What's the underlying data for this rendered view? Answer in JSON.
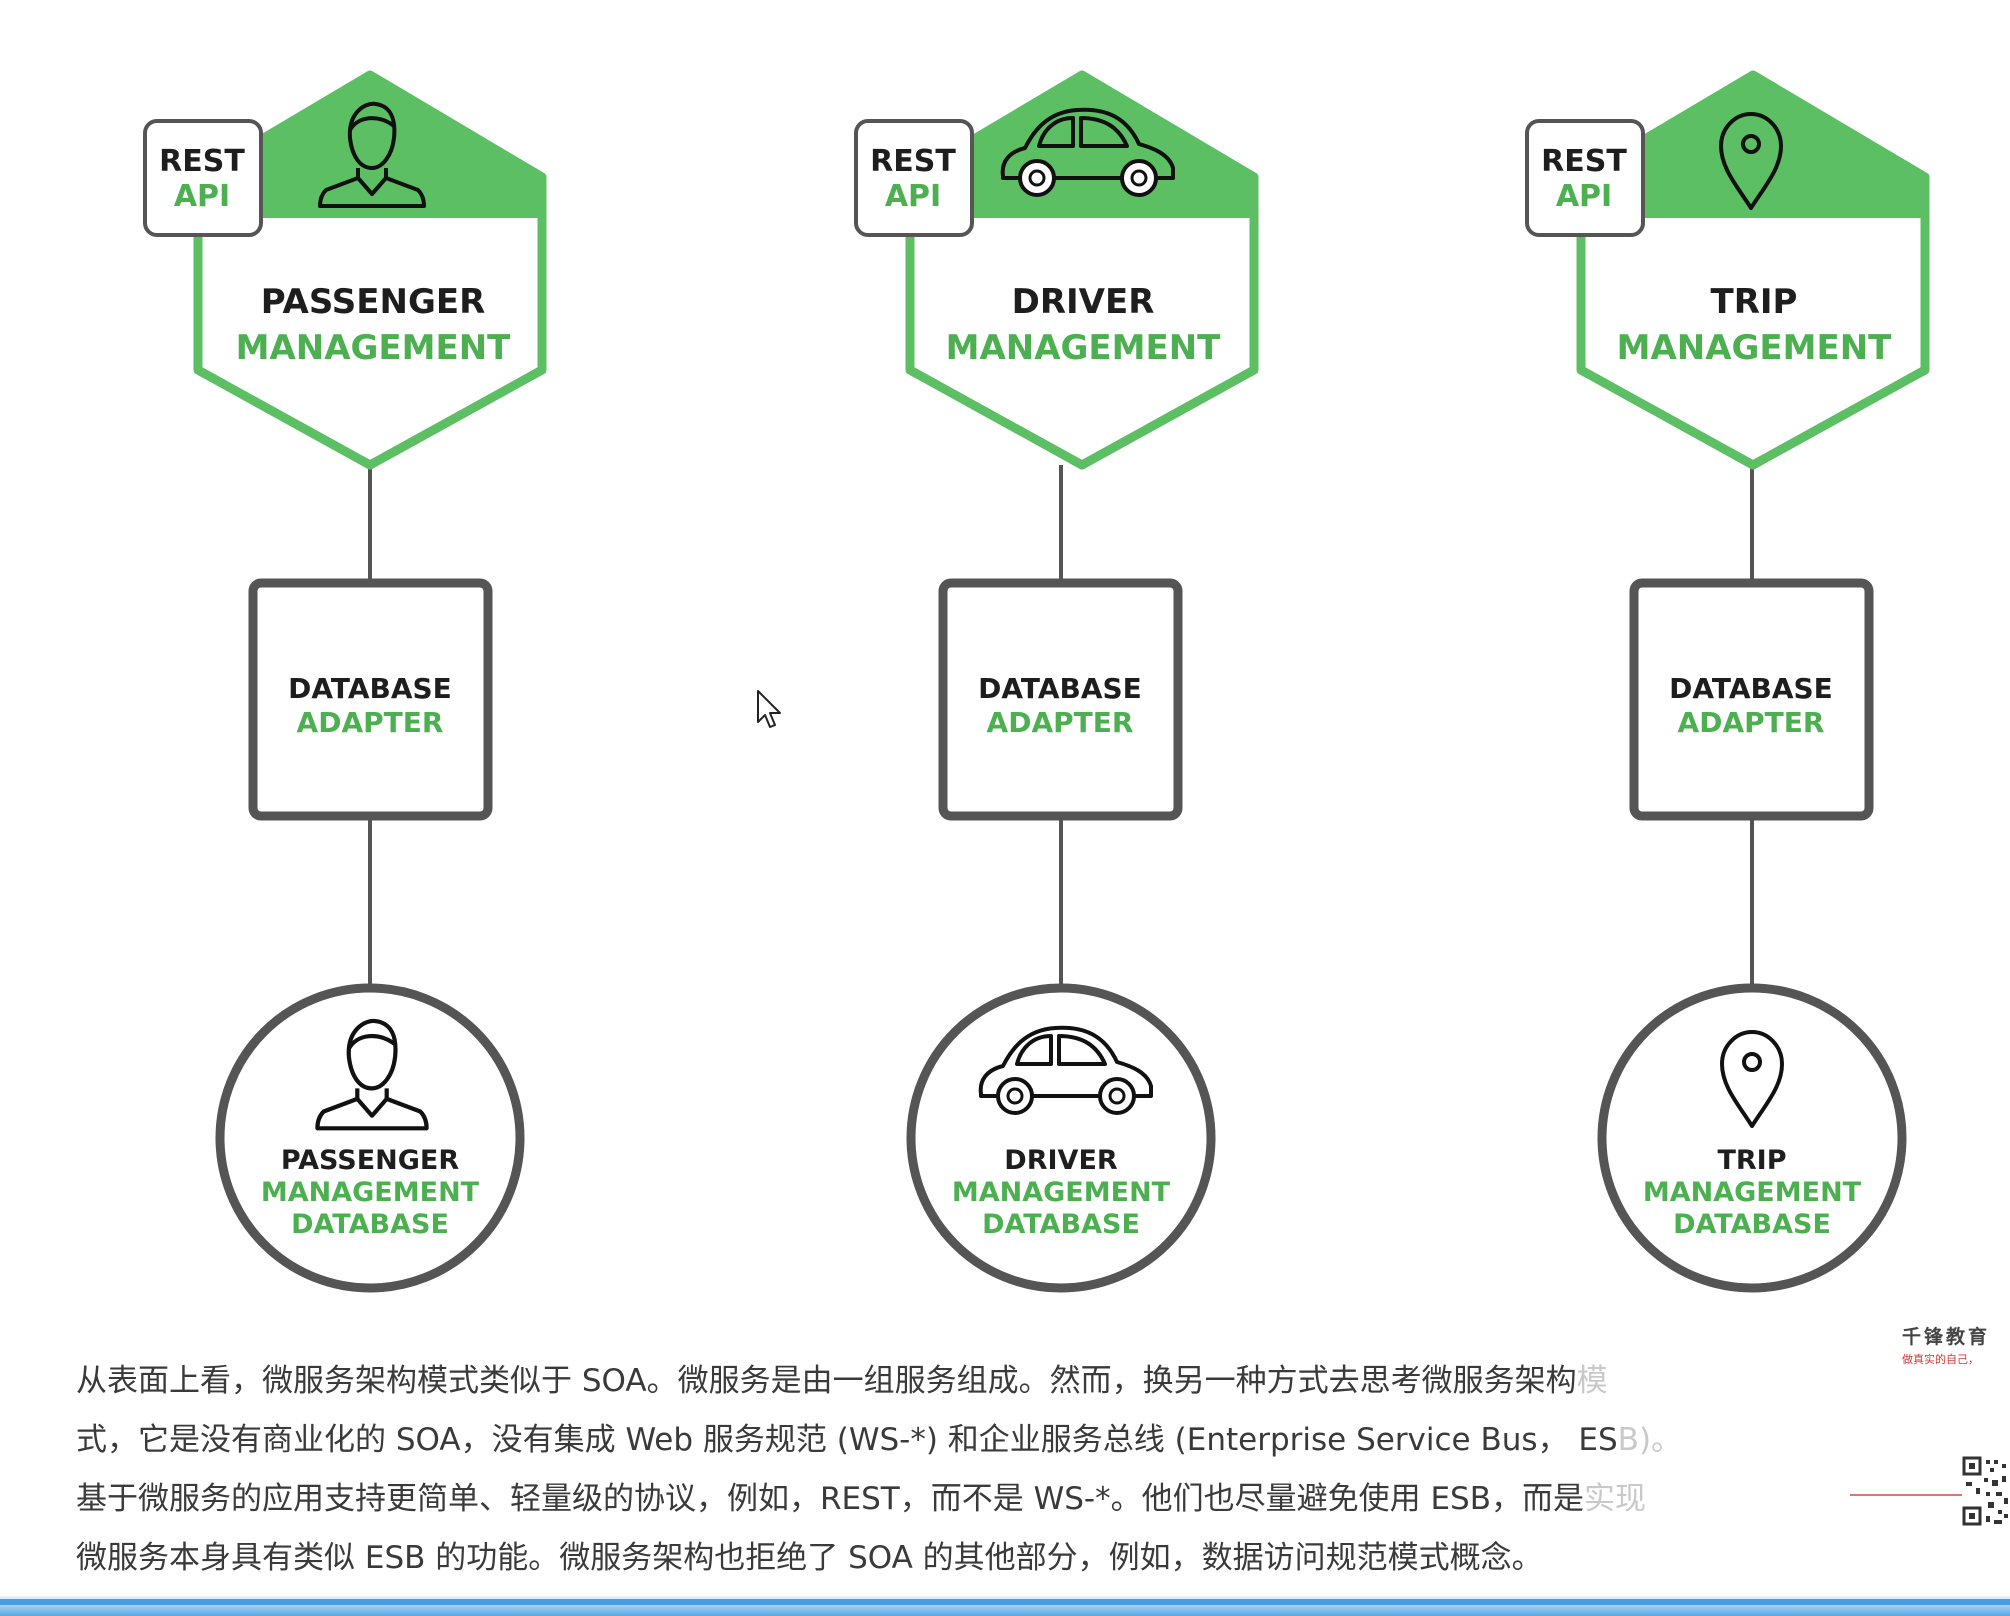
{
  "services": [
    {
      "id": "passenger",
      "icon": "person-icon",
      "api": {
        "line1": "REST",
        "line2": "API"
      },
      "name": {
        "line1": "PASSENGER",
        "line2": "MANAGEMENT"
      },
      "adapter": {
        "line1": "DATABASE",
        "line2": "ADAPTER"
      },
      "database": {
        "line1": "PASSENGER",
        "line2": "MANAGEMENT",
        "line3": "DATABASE"
      }
    },
    {
      "id": "driver",
      "icon": "car-icon",
      "api": {
        "line1": "REST",
        "line2": "API"
      },
      "name": {
        "line1": "DRIVER",
        "line2": "MANAGEMENT"
      },
      "adapter": {
        "line1": "DATABASE",
        "line2": "ADAPTER"
      },
      "database": {
        "line1": "DRIVER",
        "line2": "MANAGEMENT",
        "line3": "DATABASE"
      }
    },
    {
      "id": "trip",
      "icon": "map-pin-icon",
      "api": {
        "line1": "REST",
        "line2": "API"
      },
      "name": {
        "line1": "TRIP",
        "line2": "MANAGEMENT"
      },
      "adapter": {
        "line1": "DATABASE",
        "line2": "ADAPTER"
      },
      "database": {
        "line1": "TRIP",
        "line2": "MANAGEMENT",
        "line3": "DATABASE"
      }
    }
  ],
  "paragraph": {
    "line1": "从表面上看，微服务架构模式类似于 SOA。微服务是由一组服务组成。然而，换另一种方式去思考微服务架构",
    "line1_fade": "模",
    "line2": "式，它是没有商业化的 SOA，没有集成 Web 服务规范 (WS-*) 和企业服务总线 (Enterprise Service Bus， ES",
    "line2_fade": "B)。",
    "line3": "基于微服务的应用支持更简单、轻量级的协议，例如，REST，而不是 WS-*。他们也尽量避免使用 ESB，而是",
    "line3_fade": "实现",
    "line4": "微服务本身具有类似 ESB 的功能。微服务架构也拒绝了 SOA 的其他部分，例如，数据访问规范模式概念。"
  },
  "brand": {
    "name": "千锋教育",
    "slogan": "做真实的自己，"
  },
  "colors": {
    "accent": "#4caf50",
    "dark": "#1e1e1e",
    "border": "#555555"
  }
}
